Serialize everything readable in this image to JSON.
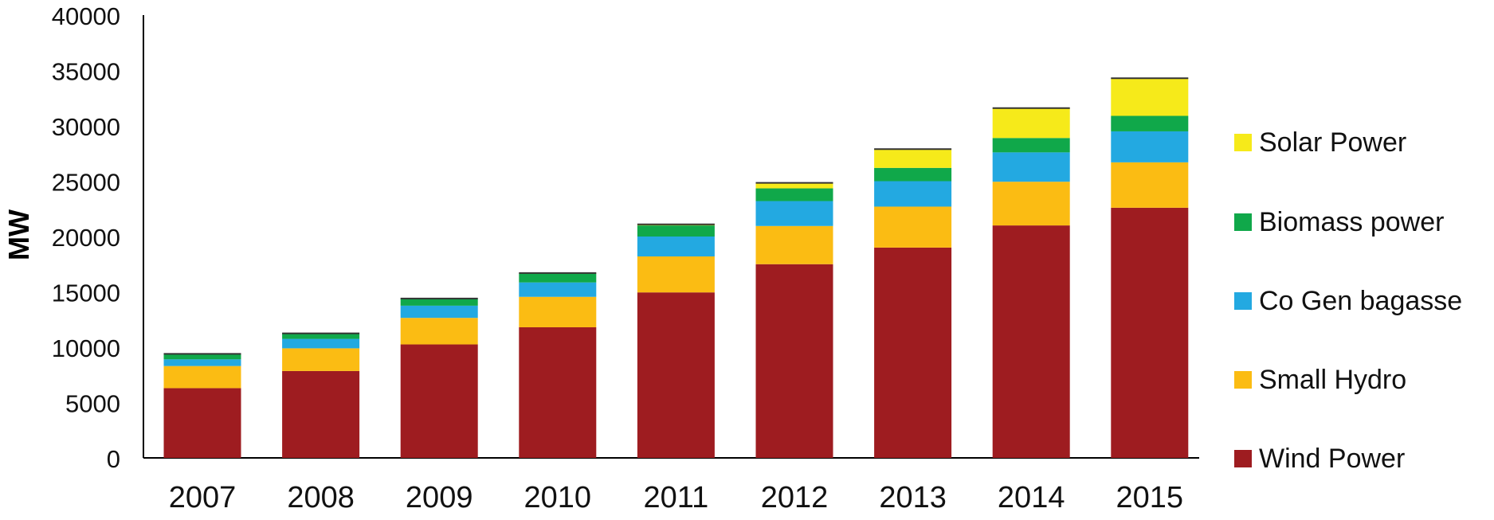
{
  "chart_data": {
    "type": "bar",
    "stacked": true,
    "title": "",
    "xlabel": "",
    "ylabel": "MW",
    "ylim": [
      0,
      40000
    ],
    "yticks": [
      0,
      5000,
      10000,
      15000,
      20000,
      25000,
      30000,
      35000,
      40000
    ],
    "grid": false,
    "legend_position": "right",
    "categories": [
      "2007",
      "2008",
      "2009",
      "2010",
      "2011",
      "2012",
      "2013",
      "2014",
      "2015"
    ],
    "series": [
      {
        "name": "Wind Power",
        "color": "#9E1C20",
        "values": [
          6300,
          7850,
          10250,
          11800,
          14950,
          17500,
          19000,
          21000,
          22600
        ]
      },
      {
        "name": "Small Hydro",
        "color": "#FBBC13",
        "values": [
          2000,
          2050,
          2400,
          2750,
          3250,
          3450,
          3700,
          3950,
          4100
        ]
      },
      {
        "name": "Co Gen bagasse",
        "color": "#23A9E1",
        "values": [
          600,
          850,
          1100,
          1300,
          1800,
          2250,
          2300,
          2650,
          2800
        ]
      },
      {
        "name": "Biomass power",
        "color": "#10A84A",
        "values": [
          500,
          500,
          650,
          800,
          1000,
          1150,
          1200,
          1300,
          1400
        ]
      },
      {
        "name": "Solar Power",
        "color": "#F6EA1A",
        "values": [
          0,
          0,
          0,
          50,
          100,
          500,
          1700,
          2700,
          3400
        ]
      }
    ]
  }
}
